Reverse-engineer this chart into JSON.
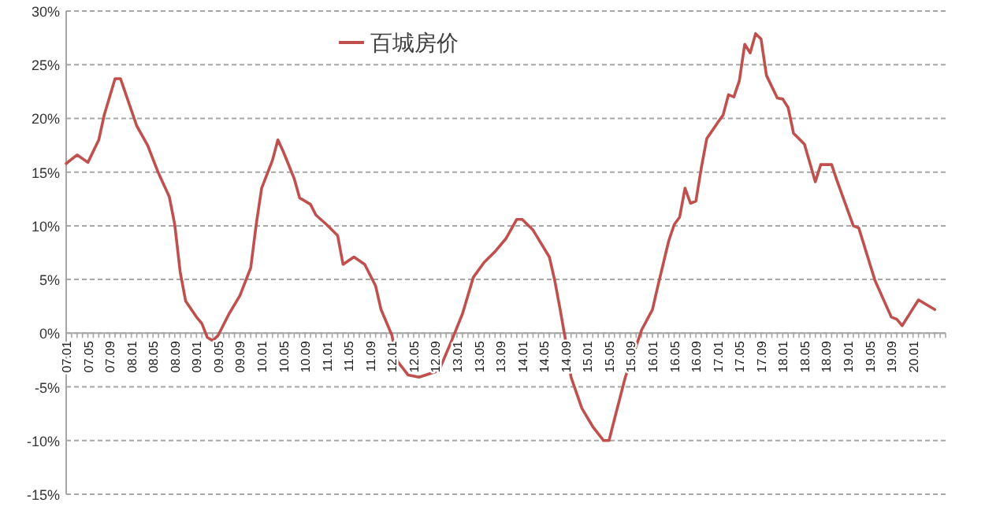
{
  "chart_data": {
    "type": "line",
    "x": [
      "2007-01",
      "2007-03",
      "2007-05",
      "2007-07",
      "2007-08",
      "2007-10",
      "2007-11",
      "2008-02",
      "2008-04",
      "2008-06",
      "2008-08",
      "2008-09",
      "2008-10",
      "2008-11",
      "2009-01",
      "2009-02",
      "2009-03",
      "2009-04",
      "2009-05",
      "2009-07",
      "2009-09",
      "2009-11",
      "2009-12",
      "2010-01",
      "2010-03",
      "2010-04",
      "2010-05",
      "2010-07",
      "2010-08",
      "2010-10",
      "2010-11",
      "2011-01",
      "2011-03",
      "2011-04",
      "2011-06",
      "2011-08",
      "2011-10",
      "2011-11",
      "2012-01",
      "2012-02",
      "2012-04",
      "2012-06",
      "2012-09",
      "2012-10",
      "2012-12",
      "2013-02",
      "2013-04",
      "2013-06",
      "2013-08",
      "2013-10",
      "2013-12",
      "2014-01",
      "2014-03",
      "2014-06",
      "2014-07",
      "2014-08",
      "2014-09",
      "2014-10",
      "2014-12",
      "2015-02",
      "2015-04",
      "2015-05",
      "2015-06",
      "2015-08",
      "2015-10",
      "2015-11",
      "2016-01",
      "2016-02",
      "2016-04",
      "2016-05",
      "2016-06",
      "2016-07",
      "2016-08",
      "2016-09",
      "2016-10",
      "2016-11",
      "2017-01",
      "2017-02",
      "2017-03",
      "2017-04",
      "2017-05",
      "2017-06",
      "2017-07",
      "2017-08",
      "2017-09",
      "2017-10",
      "2017-12",
      "2018-01",
      "2018-02",
      "2018-03",
      "2018-05",
      "2018-07",
      "2018-08",
      "2018-10",
      "2018-11",
      "2019-02",
      "2019-03",
      "2019-06",
      "2019-09",
      "2019-10",
      "2019-11",
      "2019-12",
      "2020-02",
      "2020-05"
    ],
    "series": [
      {
        "name": "百城房价",
        "color": "#c0504d",
        "values": [
          15.8,
          16.6,
          15.9,
          18.0,
          20.3,
          23.7,
          23.7,
          19.3,
          17.5,
          14.9,
          12.7,
          10.1,
          5.7,
          3.0,
          1.5,
          0.9,
          -0.4,
          -0.7,
          -0.2,
          1.8,
          3.5,
          6.1,
          10.1,
          13.5,
          16.1,
          18.0,
          16.9,
          14.4,
          12.6,
          12.0,
          11.0,
          10.1,
          9.1,
          6.4,
          7.1,
          6.4,
          4.4,
          2.2,
          -0.2,
          -2.6,
          -3.9,
          -4.1,
          -3.6,
          -3.1,
          -0.7,
          1.8,
          5.2,
          6.6,
          7.6,
          8.8,
          10.6,
          10.6,
          9.6,
          7.1,
          4.9,
          2.2,
          -0.7,
          -4.1,
          -7.0,
          -8.7,
          -10.0,
          -10.0,
          -8.0,
          -4.1,
          -1.2,
          0.3,
          2.2,
          4.4,
          8.6,
          10.1,
          10.8,
          13.5,
          12.1,
          12.3,
          15.4,
          18.1,
          19.6,
          20.3,
          22.2,
          22.0,
          23.5,
          26.9,
          26.1,
          27.9,
          27.4,
          24.0,
          21.9,
          21.8,
          21.0,
          18.6,
          17.6,
          14.1,
          15.7,
          15.7,
          14.2,
          10.0,
          9.8,
          4.9,
          1.5,
          1.3,
          0.7,
          1.5,
          3.1,
          2.2
        ]
      }
    ],
    "xlim": [
      "2007-01",
      "2020-07"
    ],
    "xticks": [
      {
        "value": "2007-01",
        "label": "07.01"
      },
      {
        "value": "2007-05",
        "label": "07.05"
      },
      {
        "value": "2007-09",
        "label": "07.09"
      },
      {
        "value": "2008-01",
        "label": "08.01"
      },
      {
        "value": "2008-05",
        "label": "08.05"
      },
      {
        "value": "2008-09",
        "label": "08.09"
      },
      {
        "value": "2009-01",
        "label": "09.01"
      },
      {
        "value": "2009-05",
        "label": "09.05"
      },
      {
        "value": "2009-09",
        "label": "09.09"
      },
      {
        "value": "2010-01",
        "label": "10.01"
      },
      {
        "value": "2010-05",
        "label": "10.05"
      },
      {
        "value": "2010-09",
        "label": "10.09"
      },
      {
        "value": "2011-01",
        "label": "11.01"
      },
      {
        "value": "2011-05",
        "label": "11.05"
      },
      {
        "value": "2011-09",
        "label": "11.09"
      },
      {
        "value": "2012-01",
        "label": "12.01"
      },
      {
        "value": "2012-05",
        "label": "12.05"
      },
      {
        "value": "2012-09",
        "label": "12.09"
      },
      {
        "value": "2013-01",
        "label": "13.01"
      },
      {
        "value": "2013-05",
        "label": "13.05"
      },
      {
        "value": "2013-09",
        "label": "13.09"
      },
      {
        "value": "2014-01",
        "label": "14.01"
      },
      {
        "value": "2014-05",
        "label": "14.05"
      },
      {
        "value": "2014-09",
        "label": "14.09"
      },
      {
        "value": "2015-01",
        "label": "15.01"
      },
      {
        "value": "2015-05",
        "label": "15.05"
      },
      {
        "value": "2015-09",
        "label": "15.09"
      },
      {
        "value": "2016-01",
        "label": "16.01"
      },
      {
        "value": "2016-05",
        "label": "16.05"
      },
      {
        "value": "2016-09",
        "label": "16.09"
      },
      {
        "value": "2017-01",
        "label": "17.01"
      },
      {
        "value": "2017-05",
        "label": "17.05"
      },
      {
        "value": "2017-09",
        "label": "17.09"
      },
      {
        "value": "2018-01",
        "label": "18.01"
      },
      {
        "value": "2018-05",
        "label": "18.05"
      },
      {
        "value": "2018-09",
        "label": "18.09"
      },
      {
        "value": "2019-01",
        "label": "19.01"
      },
      {
        "value": "2019-05",
        "label": "19.05"
      },
      {
        "value": "2019-09",
        "label": "19.09"
      },
      {
        "value": "2020-01",
        "label": "20.01"
      }
    ],
    "ylim": [
      -15,
      30
    ],
    "yticks": [
      {
        "value": -15,
        "label": "-15%"
      },
      {
        "value": -10,
        "label": "-10%"
      },
      {
        "value": -5,
        "label": "-5%"
      },
      {
        "value": 0,
        "label": "0%"
      },
      {
        "value": 5,
        "label": "5%"
      },
      {
        "value": 10,
        "label": "10%"
      },
      {
        "value": 15,
        "label": "15%"
      },
      {
        "value": 20,
        "label": "20%"
      },
      {
        "value": 25,
        "label": "25%"
      },
      {
        "value": 30,
        "label": "30%"
      }
    ],
    "grid": "y",
    "legend": "top",
    "line_style": "solid",
    "marker": "none"
  }
}
